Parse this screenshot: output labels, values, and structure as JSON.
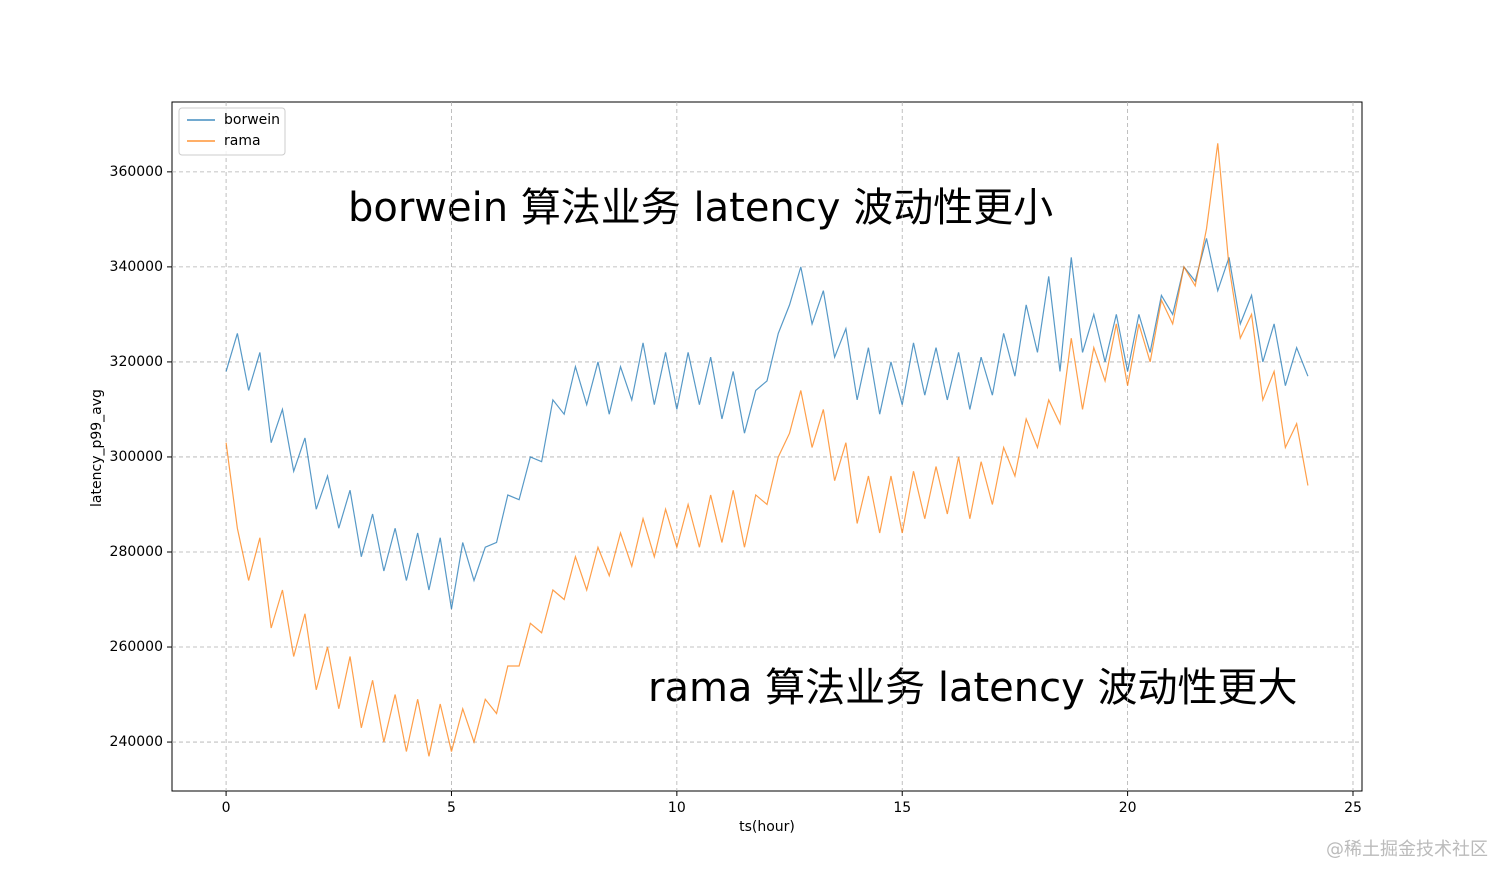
{
  "chart_data": {
    "type": "line",
    "annotations": [
      "borwein 算法业务 latency 波动性更小",
      "rama 算法业务 latency 波动性更大"
    ],
    "watermark": "@稀土掘金技术社区",
    "x_label": "ts(hour)",
    "y_label": "latency_p99_avg",
    "xlim": [
      -1.2,
      25.2
    ],
    "xticks": [
      0,
      5,
      10,
      15,
      20,
      25
    ],
    "ylim": [
      229700,
      374700
    ],
    "yticks": [
      240000,
      260000,
      280000,
      300000,
      320000,
      340000,
      360000
    ],
    "grid": true,
    "legend": "upper left",
    "x": [
      0,
      0.25,
      0.5,
      0.75,
      1,
      1.25,
      1.5,
      1.75,
      2,
      2.25,
      2.5,
      2.75,
      3,
      3.25,
      3.5,
      3.75,
      4,
      4.25,
      4.5,
      4.75,
      5,
      5.25,
      5.5,
      5.75,
      6,
      6.25,
      6.5,
      6.75,
      7,
      7.25,
      7.5,
      7.75,
      8,
      8.25,
      8.5,
      8.75,
      9,
      9.25,
      9.5,
      9.75,
      10,
      10.25,
      10.5,
      10.75,
      11,
      11.25,
      11.5,
      11.75,
      12,
      12.25,
      12.5,
      12.75,
      13,
      13.25,
      13.5,
      13.75,
      14,
      14.25,
      14.5,
      14.75,
      15,
      15.25,
      15.5,
      15.75,
      16,
      16.25,
      16.5,
      16.75,
      17,
      17.25,
      17.5,
      17.75,
      18,
      18.25,
      18.5,
      18.75,
      19,
      19.25,
      19.5,
      19.75,
      20,
      20.25,
      20.5,
      20.75,
      21,
      21.25,
      21.5,
      21.75,
      22,
      22.25,
      22.5,
      22.75,
      23,
      23.25,
      23.5,
      23.75,
      24
    ],
    "series": [
      {
        "name": "borwein",
        "color": "#1f77b4",
        "values": [
          318000,
          326000,
          314000,
          322000,
          303000,
          310000,
          297000,
          304000,
          289000,
          296000,
          285000,
          293000,
          279000,
          288000,
          276000,
          285000,
          274000,
          284000,
          272000,
          283000,
          268000,
          282000,
          274000,
          281000,
          282000,
          292000,
          291000,
          300000,
          299000,
          312000,
          309000,
          319000,
          311000,
          320000,
          309000,
          319000,
          312000,
          324000,
          311000,
          322000,
          310000,
          322000,
          311000,
          321000,
          308000,
          318000,
          305000,
          314000,
          316000,
          326000,
          332000,
          340000,
          328000,
          335000,
          321000,
          327000,
          312000,
          323000,
          309000,
          320000,
          311000,
          324000,
          313000,
          323000,
          312000,
          322000,
          310000,
          321000,
          313000,
          326000,
          317000,
          332000,
          322000,
          338000,
          318000,
          342000,
          322000,
          330000,
          320000,
          330000,
          318000,
          330000,
          322000,
          334000,
          330000,
          340000,
          337000,
          346000,
          335000,
          342000,
          328000,
          334000,
          320000,
          328000,
          315000,
          323000,
          317000
        ]
      },
      {
        "name": "rama",
        "color": "#ff7f0e",
        "values": [
          303000,
          285000,
          274000,
          283000,
          264000,
          272000,
          258000,
          267000,
          251000,
          260000,
          247000,
          258000,
          243000,
          253000,
          240000,
          250000,
          238000,
          249000,
          237000,
          248000,
          238000,
          247000,
          240000,
          249000,
          246000,
          256000,
          256000,
          265000,
          263000,
          272000,
          270000,
          279000,
          272000,
          281000,
          275000,
          284000,
          277000,
          287000,
          279000,
          289000,
          281000,
          290000,
          281000,
          292000,
          282000,
          293000,
          281000,
          292000,
          290000,
          300000,
          305000,
          314000,
          302000,
          310000,
          295000,
          303000,
          286000,
          296000,
          284000,
          296000,
          284000,
          297000,
          287000,
          298000,
          288000,
          300000,
          287000,
          299000,
          290000,
          302000,
          296000,
          308000,
          302000,
          312000,
          307000,
          325000,
          310000,
          323000,
          316000,
          328000,
          315000,
          328000,
          320000,
          333000,
          328000,
          340000,
          336000,
          348000,
          366000,
          340000,
          325000,
          330000,
          312000,
          318000,
          302000,
          307000,
          294000
        ]
      }
    ]
  }
}
